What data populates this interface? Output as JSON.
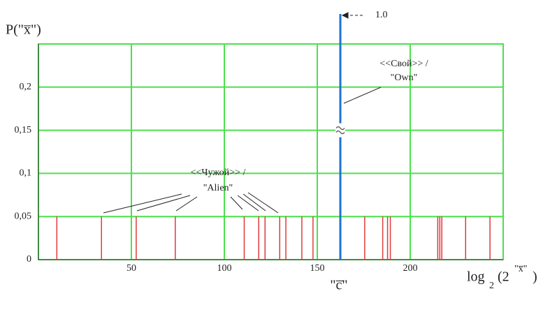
{
  "chart_data": {
    "type": "stem",
    "y_label": "P(\"x̅\")",
    "x_label": {
      "base": "log",
      "sub": "2",
      "open": "(2",
      "sup": "\"x̅\"",
      "close": ")"
    },
    "marker_label": "\"c̅\"",
    "annotations": [
      "<<Свой>> /",
      "\"Own\"",
      "<<Чужой>> /",
      "\"Alien\""
    ],
    "series": [
      {
        "color": "#e03a3a",
        "x": [
          9.9,
          33.9,
          52.6,
          73.6,
          110.7,
          118.5,
          121.9,
          129.8,
          133.1,
          141.7,
          147.7,
          175.5,
          185.2,
          187.8,
          189.3,
          214.8,
          215.9,
          217.0,
          229.8,
          242.9
        ],
        "values": [
          0.05,
          0.05,
          0.05,
          0.05,
          0.05,
          0.05,
          0.05,
          0.05,
          0.05,
          0.05,
          0.05,
          0.05,
          0.05,
          0.05,
          0.05,
          0.05,
          0.05,
          0.05,
          0.05,
          0.05
        ]
      },
      {
        "color": "#1e73d2",
        "x": [
          162.4
        ],
        "values": [
          1.0
        ],
        "value_labels": [
          "1.0"
        ]
      }
    ],
    "xlim": [
      0,
      250
    ],
    "ylim": [
      0,
      0.25
    ],
    "xticks": [
      50,
      100,
      150,
      200
    ],
    "yticks": [
      0,
      {
        "value": 0.05,
        "label": "0,05"
      },
      {
        "value": 0.1,
        "label": "0,1"
      },
      {
        "value": 0.15,
        "label": "0,15"
      },
      {
        "value": 0.2,
        "label": "0,2"
      }
    ],
    "grid": true,
    "grid_color": "#4de04d"
  }
}
